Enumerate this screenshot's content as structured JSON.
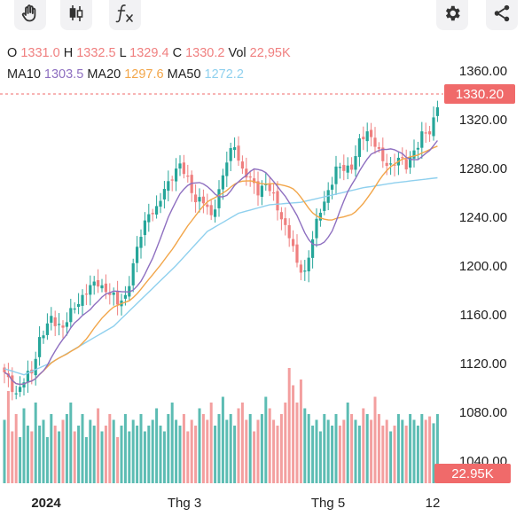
{
  "toolbar": {
    "icons": [
      "hand-icon",
      "candlestick-icon",
      "function-icon",
      "gear-icon",
      "share-icon"
    ]
  },
  "quote": {
    "open_label": "O",
    "open": "1331.0",
    "high_label": "H",
    "high": "1332.5",
    "low_label": "L",
    "low": "1329.4",
    "close_label": "C",
    "close": "1330.2",
    "vol_label": "Vol",
    "vol": "22,95K"
  },
  "ma": {
    "ma10_label": "MA10",
    "ma10": "1303.5",
    "ma20_label": "MA20",
    "ma20": "1297.6",
    "ma50_label": "MA50",
    "ma50": "1272.2"
  },
  "colors": {
    "up": "#26a69a",
    "down": "#ef7f7f",
    "ma10": "#8e6fc0",
    "ma20": "#f2a64a",
    "ma50": "#8fd0ee",
    "price_tag": "#f06a6a",
    "vol_tag": "#f06a6a",
    "quote_value": "#f08080"
  },
  "chart_data": {
    "type": "candlestick",
    "y_ticks": [
      "1360.00",
      "1320.00",
      "1280.00",
      "1240.00",
      "1200.00",
      "1160.00",
      "1120.00",
      "1080.00",
      "1040.00"
    ],
    "ylim": [
      1040,
      1370
    ],
    "x_labels": [
      "2024",
      "Thg 3",
      "Thg 5",
      "12"
    ],
    "last_price_label": "1330.20",
    "last_price": 1330.2,
    "volume_label": "22.95K",
    "grid": false,
    "close_anchors": [
      [
        0,
        1110
      ],
      [
        3,
        1095
      ],
      [
        5,
        1105
      ],
      [
        7,
        1112
      ],
      [
        9,
        1140
      ],
      [
        12,
        1155
      ],
      [
        15,
        1150
      ],
      [
        18,
        1165
      ],
      [
        21,
        1180
      ],
      [
        24,
        1185
      ],
      [
        27,
        1178
      ],
      [
        29,
        1168
      ],
      [
        31,
        1175
      ],
      [
        33,
        1200
      ],
      [
        35,
        1225
      ],
      [
        37,
        1245
      ],
      [
        39,
        1245
      ],
      [
        41,
        1262
      ],
      [
        43,
        1275
      ],
      [
        45,
        1282
      ],
      [
        47,
        1270
      ],
      [
        49,
        1255
      ],
      [
        51,
        1252
      ],
      [
        53,
        1240
      ],
      [
        55,
        1262
      ],
      [
        57,
        1285
      ],
      [
        59,
        1300
      ],
      [
        61,
        1278
      ],
      [
        63,
        1270
      ],
      [
        65,
        1262
      ],
      [
        67,
        1268
      ],
      [
        69,
        1255
      ],
      [
        71,
        1240
      ],
      [
        73,
        1225
      ],
      [
        75,
        1200
      ],
      [
        77,
        1195
      ],
      [
        79,
        1222
      ],
      [
        81,
        1245
      ],
      [
        83,
        1262
      ],
      [
        85,
        1278
      ],
      [
        87,
        1280
      ],
      [
        89,
        1282
      ],
      [
        91,
        1300
      ],
      [
        93,
        1310
      ],
      [
        95,
        1302
      ],
      [
        97,
        1284
      ],
      [
        99,
        1282
      ],
      [
        101,
        1290
      ],
      [
        103,
        1280
      ],
      [
        105,
        1295
      ],
      [
        107,
        1308
      ],
      [
        109,
        1308
      ],
      [
        111,
        1330
      ]
    ],
    "ma50_anchors": [
      [
        0,
        1115
      ],
      [
        5,
        1110
      ],
      [
        12,
        1120
      ],
      [
        20,
        1135
      ],
      [
        28,
        1150
      ],
      [
        36,
        1175
      ],
      [
        44,
        1200
      ],
      [
        52,
        1228
      ],
      [
        60,
        1243
      ],
      [
        68,
        1250
      ],
      [
        76,
        1252
      ],
      [
        84,
        1258
      ],
      [
        92,
        1264
      ],
      [
        100,
        1268
      ],
      [
        111,
        1272.2
      ]
    ],
    "volume_rel": [
      0.55,
      0.8,
      0.45,
      0.6,
      0.4,
      0.65,
      0.5,
      0.45,
      0.7,
      0.5,
      0.55,
      0.4,
      0.6,
      0.5,
      0.45,
      0.55,
      0.6,
      0.7,
      0.45,
      0.5,
      0.6,
      0.4,
      0.55,
      0.5,
      0.65,
      0.45,
      0.5,
      0.6,
      0.55,
      0.4,
      0.5,
      0.6,
      0.45,
      0.55,
      0.5,
      0.6,
      0.45,
      0.5,
      0.55,
      0.65,
      0.5,
      0.45,
      0.6,
      0.7,
      0.55,
      0.5,
      0.6,
      0.45,
      0.55,
      0.5,
      0.65,
      0.6,
      0.55,
      0.7,
      0.5,
      0.6,
      0.75,
      0.55,
      0.6,
      0.5,
      0.65,
      0.7,
      0.55,
      0.6,
      0.45,
      0.55,
      0.6,
      0.75,
      0.65,
      0.55,
      0.5,
      0.6,
      0.7,
      1.0,
      0.85,
      0.7,
      0.9,
      0.65,
      0.6,
      0.5,
      0.55,
      0.45,
      0.6,
      0.55,
      0.5,
      0.6,
      0.5,
      0.55,
      0.7,
      0.6,
      0.55,
      0.5,
      0.65,
      0.6,
      0.55,
      0.75,
      0.6,
      0.5,
      0.55,
      0.45,
      0.5,
      0.6,
      0.55,
      0.5,
      0.6,
      0.55,
      0.5,
      0.6,
      0.55,
      0.58,
      0.52,
      0.6
    ]
  }
}
